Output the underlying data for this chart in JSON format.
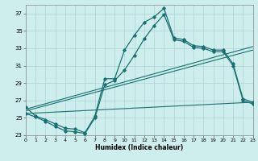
{
  "xlabel": "Humidex (Indice chaleur)",
  "background_color": "#cdeeed",
  "line_color": "#1a7070",
  "grid_color": "#afd5d5",
  "xlim": [
    0,
    23
  ],
  "ylim": [
    23,
    38
  ],
  "yticks": [
    23,
    25,
    27,
    29,
    31,
    33,
    35,
    37
  ],
  "xticks": [
    0,
    1,
    2,
    3,
    4,
    5,
    6,
    7,
    8,
    9,
    10,
    11,
    12,
    13,
    14,
    15,
    16,
    17,
    18,
    19,
    20,
    21,
    22,
    23
  ],
  "curve1_x": [
    0,
    1,
    2,
    3,
    4,
    5,
    6,
    7,
    8,
    9,
    10,
    11,
    12,
    13,
    14,
    15,
    16,
    17,
    18,
    19,
    20,
    21,
    22,
    23
  ],
  "curve1_y": [
    26.2,
    25.2,
    24.8,
    24.3,
    23.8,
    23.7,
    23.3,
    25.2,
    29.5,
    29.5,
    32.8,
    34.5,
    36.0,
    36.6,
    37.6,
    34.2,
    34.0,
    33.3,
    33.2,
    32.8,
    32.8,
    31.2,
    27.2,
    26.8
  ],
  "curve2_x": [
    0,
    1,
    2,
    3,
    4,
    5,
    6,
    7,
    8,
    9,
    10,
    11,
    12,
    13,
    14,
    15,
    16,
    17,
    18,
    19,
    20,
    21,
    22,
    23
  ],
  "curve2_y": [
    25.5,
    25.1,
    24.6,
    24.0,
    23.5,
    23.4,
    23.2,
    25.0,
    28.8,
    29.3,
    30.5,
    32.2,
    34.1,
    35.6,
    36.9,
    34.0,
    33.8,
    33.1,
    33.0,
    32.6,
    32.6,
    31.0,
    27.0,
    26.6
  ],
  "line1_x": [
    0,
    23
  ],
  "line1_y": [
    25.8,
    32.8
  ],
  "line2_x": [
    0,
    23
  ],
  "line2_y": [
    25.5,
    26.8
  ],
  "line3_x": [
    0,
    23
  ],
  "line3_y": [
    26.0,
    33.2
  ]
}
